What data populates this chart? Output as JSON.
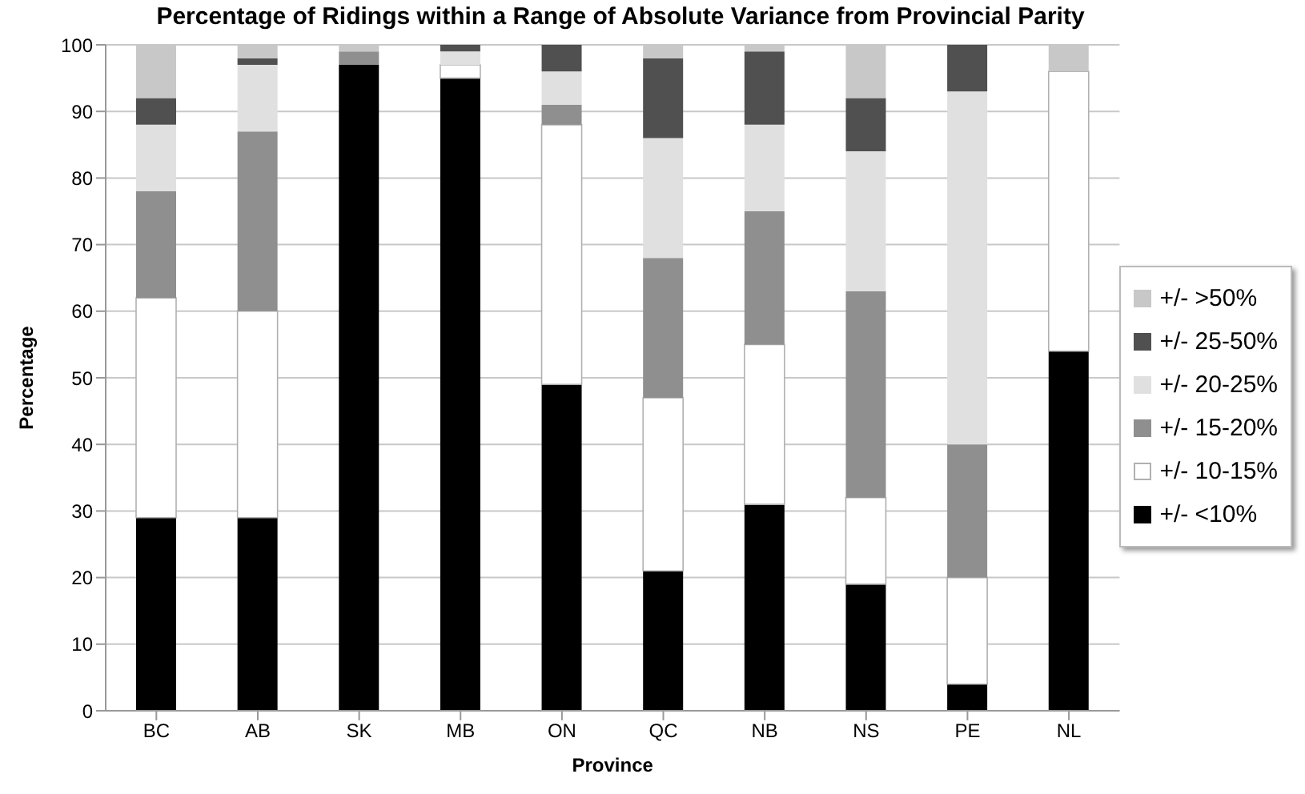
{
  "chart_data": {
    "type": "bar",
    "title": "Percentage of Ridings within a Range of Absolute Variance from Provincial Parity",
    "xlabel": "Province",
    "ylabel": "Percentage",
    "categories": [
      "BC",
      "AB",
      "SK",
      "MB",
      "ON",
      "QC",
      "NB",
      "NS",
      "PE",
      "NL"
    ],
    "stacked": true,
    "ylim": [
      0,
      100
    ],
    "yticks": [
      0,
      10,
      20,
      30,
      40,
      50,
      60,
      70,
      80,
      90,
      100
    ],
    "grid": "y",
    "legend": "right",
    "series": [
      {
        "name": "+/- <10%",
        "color": "#000000",
        "values": [
          29,
          29,
          97,
          95,
          49,
          21,
          31,
          19,
          4,
          54
        ]
      },
      {
        "name": "+/- 10-15%",
        "color": "#ffffff",
        "values": [
          33,
          31,
          0,
          2,
          39,
          26,
          24,
          13,
          16,
          42
        ]
      },
      {
        "name": "+/- 15-20%",
        "color": "#8f8f8f",
        "values": [
          16,
          27,
          2,
          0,
          3,
          21,
          20,
          31,
          20,
          0
        ]
      },
      {
        "name": "+/- 20-25%",
        "color": "#e0e0e0",
        "values": [
          10,
          10,
          0,
          2,
          5,
          18,
          13,
          21,
          53,
          0
        ]
      },
      {
        "name": "+/- 25-50%",
        "color": "#505050",
        "values": [
          4,
          1,
          0,
          1,
          4,
          12,
          11,
          8,
          7,
          0
        ]
      },
      {
        "name": "+/- >50%",
        "color": "#c8c8c8",
        "values": [
          8,
          2,
          1,
          0,
          0,
          2,
          1,
          8,
          0,
          4
        ]
      }
    ]
  }
}
